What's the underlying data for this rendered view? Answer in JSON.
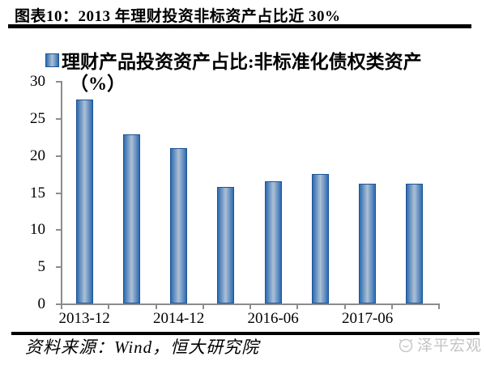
{
  "header": {
    "title": "图表10：2013 年理财投资非标资产占比近 30%"
  },
  "chart_data": {
    "type": "bar",
    "values": [
      27.5,
      22.8,
      20.9,
      15.7,
      16.5,
      17.5,
      16.1,
      16.2
    ],
    "x_tick_labels": [
      "2013-12",
      "2014-12",
      "2016-06",
      "2017-06"
    ],
    "x_tick_label_bar_index": [
      0,
      2,
      4,
      6
    ],
    "y_ticks": [
      0,
      5,
      10,
      15,
      20,
      25,
      30
    ],
    "ylim": [
      0,
      30
    ],
    "series_name": "理财产品投资资产占比:非标准化债权类资产",
    "unit_label": "（%）",
    "legend_position": "top",
    "grid": false,
    "colors": {
      "bar_edge": "#2e6cb3",
      "bar_center": "#adc0d4",
      "bar_border": "#1d5494",
      "axis": "#8c8c8c"
    }
  },
  "footer": {
    "source": "资料来源：Wind，恒大研究院",
    "watermark": "泽平宏观"
  }
}
